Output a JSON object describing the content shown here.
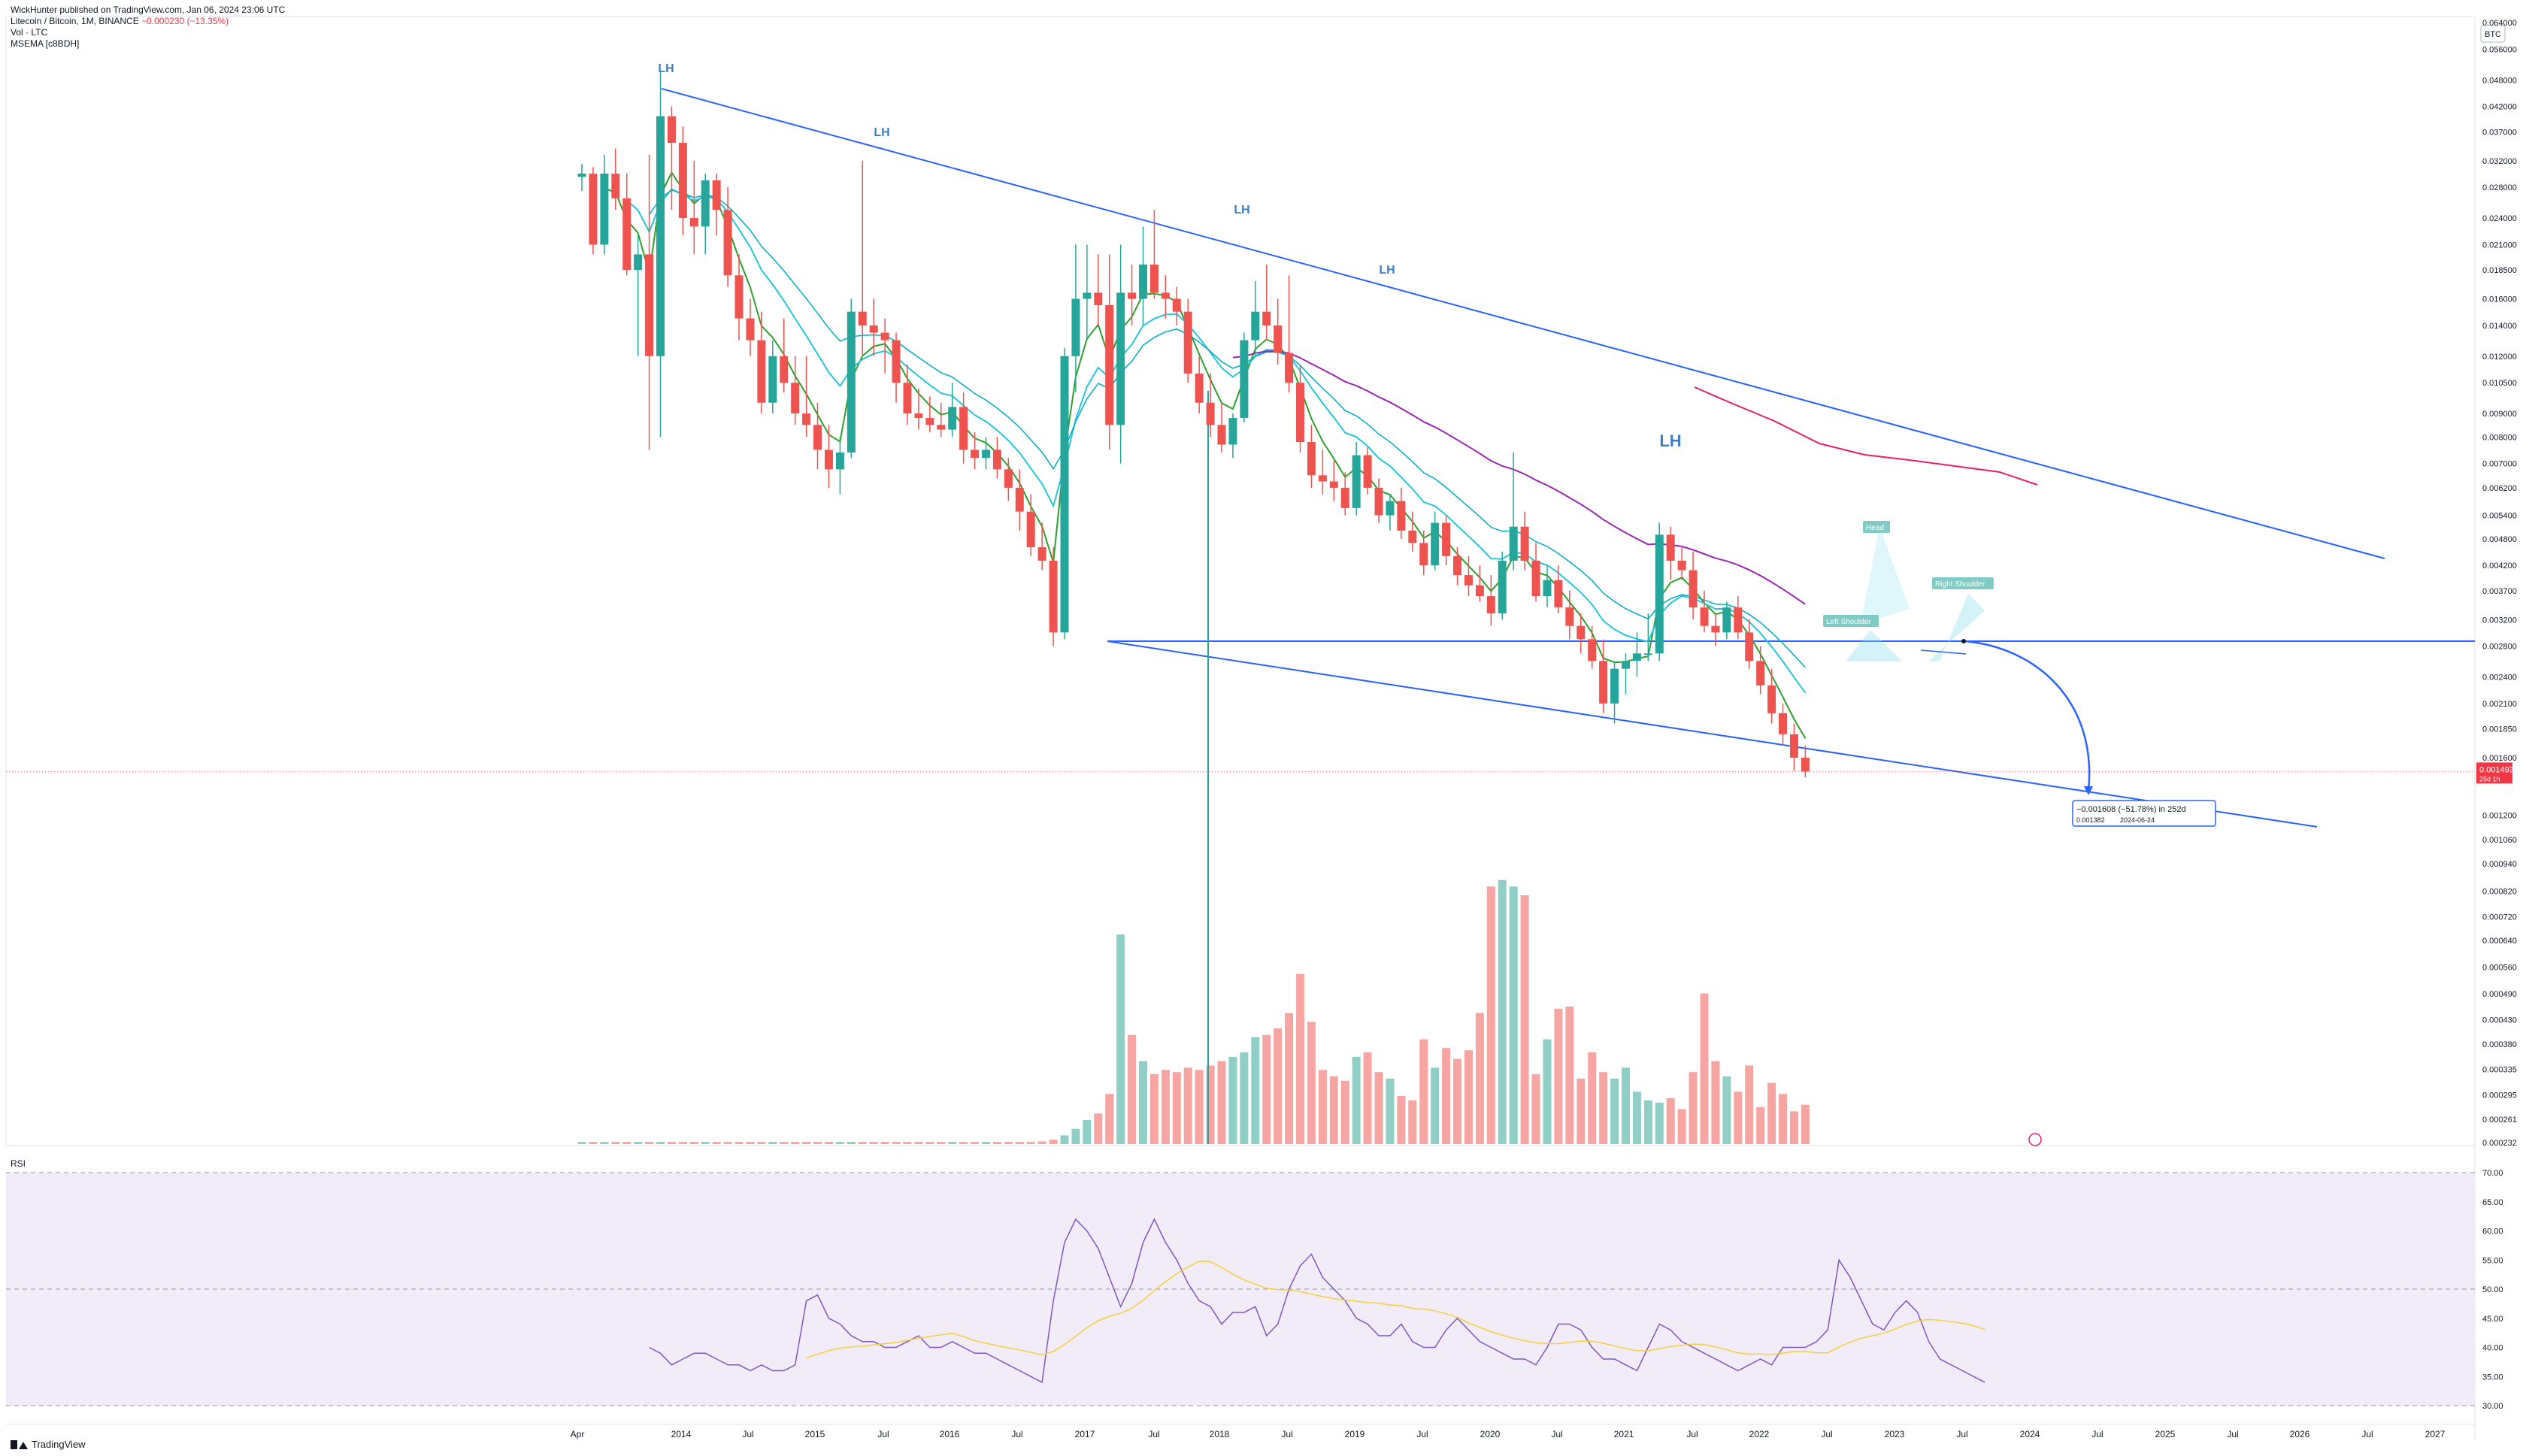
{
  "header": {
    "published": "WickHunter published on TradingView.com, Jan 06, 2024 23:06 UTC",
    "symbol": "Litecoin / Bitcoin, 1M, BINANCE",
    "change": "−0.000230 (−13.35%)",
    "vol_label": "Vol · LTC",
    "indicator": "MSEMA [c8BDH]"
  },
  "rsi_label": "RSI",
  "currency_badge": "BTC",
  "branding": "TradingView",
  "colors": {
    "up": "#26a69a",
    "down": "#ef5350",
    "vol_up": "#8fcfc6",
    "vol_down": "#f6a5a3",
    "trend": "#2962ff",
    "ema_green": "#2ca02c",
    "ema_cyan": "#26c6da",
    "ema_blue": "#00acc1",
    "ema_purple": "#9c27b0",
    "ema_pink": "#e91e63",
    "rsi": "#7e57c2",
    "rsi_ma": "#f4d03f",
    "rsi_band": "#ede7f6",
    "price": "#f23645"
  },
  "chart_data": {
    "type": "candlestick",
    "price_scale": "log",
    "y_ticks": [
      "0.064000",
      "0.056000",
      "0.048000",
      "0.042000",
      "0.037000",
      "0.032000",
      "0.028000",
      "0.024000",
      "0.021000",
      "0.018500",
      "0.016000",
      "0.014000",
      "0.012000",
      "0.010500",
      "0.009000",
      "0.008000",
      "0.007000",
      "0.006200",
      "0.005400",
      "0.004800",
      "0.004200",
      "0.003700",
      "0.003200",
      "0.002800",
      "0.002400",
      "0.002100",
      "0.001850",
      "0.001600",
      "0.001200",
      "0.001060",
      "0.000940",
      "0.000820",
      "0.000720",
      "0.000640",
      "0.000560",
      "0.000490",
      "0.000430",
      "0.000380",
      "0.000335",
      "0.000295",
      "0.000261",
      "0.000232"
    ],
    "current_price": {
      "value": "0.001493",
      "countdown": "25d 1h"
    },
    "x_ticks": [
      "Apr",
      "2014",
      "Jul",
      "2015",
      "Jul",
      "2016",
      "Jul",
      "2017",
      "Jul",
      "2018",
      "Jul",
      "2019",
      "Jul",
      "2020",
      "Jul",
      "2021",
      "Jul",
      "2022",
      "Jul",
      "2023",
      "Jul",
      "2024",
      "Jul",
      "2025",
      "Jul",
      "2026",
      "Jul",
      "2027"
    ],
    "candles_ohlc": [
      [
        0.0295,
        0.0315,
        0.0275,
        0.03
      ],
      [
        0.03,
        0.031,
        0.02,
        0.021
      ],
      [
        0.021,
        0.033,
        0.02,
        0.03
      ],
      [
        0.03,
        0.034,
        0.025,
        0.0265
      ],
      [
        0.0265,
        0.03,
        0.018,
        0.0185
      ],
      [
        0.0185,
        0.022,
        0.012,
        0.02
      ],
      [
        0.02,
        0.033,
        0.0075,
        0.012
      ],
      [
        0.012,
        0.05,
        0.008,
        0.04
      ],
      [
        0.04,
        0.042,
        0.025,
        0.035
      ],
      [
        0.035,
        0.038,
        0.022,
        0.024
      ],
      [
        0.024,
        0.032,
        0.02,
        0.023
      ],
      [
        0.023,
        0.03,
        0.02,
        0.029
      ],
      [
        0.029,
        0.03,
        0.022,
        0.025
      ],
      [
        0.025,
        0.028,
        0.017,
        0.018
      ],
      [
        0.018,
        0.02,
        0.013,
        0.0145
      ],
      [
        0.0145,
        0.016,
        0.012,
        0.013
      ],
      [
        0.013,
        0.015,
        0.009,
        0.0095
      ],
      [
        0.0095,
        0.013,
        0.009,
        0.012
      ],
      [
        0.012,
        0.0145,
        0.01,
        0.0105
      ],
      [
        0.0105,
        0.012,
        0.0085,
        0.009
      ],
      [
        0.009,
        0.012,
        0.008,
        0.0085
      ],
      [
        0.0085,
        0.0095,
        0.0068,
        0.0075
      ],
      [
        0.0075,
        0.0085,
        0.0062,
        0.0068
      ],
      [
        0.0068,
        0.008,
        0.006,
        0.0074
      ],
      [
        0.0074,
        0.016,
        0.0072,
        0.015
      ],
      [
        0.015,
        0.032,
        0.012,
        0.014
      ],
      [
        0.014,
        0.016,
        0.012,
        0.0135
      ],
      [
        0.0135,
        0.0145,
        0.011,
        0.013
      ],
      [
        0.013,
        0.0135,
        0.0095,
        0.0105
      ],
      [
        0.0105,
        0.0115,
        0.0085,
        0.009
      ],
      [
        0.009,
        0.0102,
        0.0083,
        0.0088
      ],
      [
        0.0088,
        0.0098,
        0.0082,
        0.0085
      ],
      [
        0.0085,
        0.0095,
        0.008,
        0.0083
      ],
      [
        0.0083,
        0.0105,
        0.008,
        0.0093
      ],
      [
        0.0093,
        0.01,
        0.007,
        0.0075
      ],
      [
        0.0075,
        0.0082,
        0.0068,
        0.0072
      ],
      [
        0.0072,
        0.008,
        0.0068,
        0.0075
      ],
      [
        0.0075,
        0.008,
        0.0065,
        0.0068
      ],
      [
        0.0068,
        0.0072,
        0.0058,
        0.0062
      ],
      [
        0.0062,
        0.0068,
        0.005,
        0.0055
      ],
      [
        0.0055,
        0.006,
        0.0044,
        0.0046
      ],
      [
        0.0046,
        0.0052,
        0.0041,
        0.0043
      ],
      [
        0.0043,
        0.0046,
        0.0028,
        0.003
      ],
      [
        0.003,
        0.0125,
        0.0029,
        0.012
      ],
      [
        0.012,
        0.021,
        0.01,
        0.016
      ],
      [
        0.016,
        0.021,
        0.013,
        0.0165
      ],
      [
        0.0165,
        0.02,
        0.014,
        0.0155
      ],
      [
        0.0155,
        0.02,
        0.0075,
        0.0085
      ],
      [
        0.0085,
        0.021,
        0.007,
        0.0165
      ],
      [
        0.0165,
        0.019,
        0.014,
        0.016
      ],
      [
        0.016,
        0.023,
        0.014,
        0.019
      ],
      [
        0.019,
        0.025,
        0.016,
        0.0165
      ],
      [
        0.0165,
        0.018,
        0.0145,
        0.016
      ],
      [
        0.016,
        0.017,
        0.014,
        0.015
      ],
      [
        0.015,
        0.016,
        0.0105,
        0.011
      ],
      [
        0.011,
        0.012,
        0.009,
        0.0095
      ],
      [
        0.0095,
        0.011,
        0.008,
        0.0085
      ],
      [
        0.0085,
        0.0095,
        0.0074,
        0.0077
      ],
      [
        0.0077,
        0.009,
        0.0072,
        0.0088
      ],
      [
        0.0088,
        0.0135,
        0.0086,
        0.013
      ],
      [
        0.013,
        0.0175,
        0.012,
        0.015
      ],
      [
        0.015,
        0.019,
        0.013,
        0.014
      ],
      [
        0.014,
        0.016,
        0.0115,
        0.0122
      ],
      [
        0.0122,
        0.018,
        0.01,
        0.0105
      ],
      [
        0.0105,
        0.0115,
        0.0074,
        0.0078
      ],
      [
        0.0078,
        0.0085,
        0.0062,
        0.0066
      ],
      [
        0.0066,
        0.0075,
        0.006,
        0.0064
      ],
      [
        0.0064,
        0.0071,
        0.0058,
        0.0062
      ],
      [
        0.0062,
        0.0067,
        0.0054,
        0.0056
      ],
      [
        0.0056,
        0.0078,
        0.0054,
        0.0073
      ],
      [
        0.0073,
        0.0076,
        0.006,
        0.0062
      ],
      [
        0.0062,
        0.0065,
        0.0052,
        0.0054
      ],
      [
        0.0054,
        0.006,
        0.005,
        0.0058
      ],
      [
        0.0058,
        0.0062,
        0.0048,
        0.005
      ],
      [
        0.005,
        0.0055,
        0.0045,
        0.0047
      ],
      [
        0.0047,
        0.005,
        0.004,
        0.0042
      ],
      [
        0.0042,
        0.0055,
        0.0041,
        0.0052
      ],
      [
        0.0052,
        0.0054,
        0.0042,
        0.0044
      ],
      [
        0.0044,
        0.0046,
        0.0038,
        0.004
      ],
      [
        0.004,
        0.0044,
        0.0036,
        0.0038
      ],
      [
        0.0038,
        0.0042,
        0.0035,
        0.0036
      ],
      [
        0.0036,
        0.004,
        0.0031,
        0.0033
      ],
      [
        0.0033,
        0.0045,
        0.0032,
        0.0043
      ],
      [
        0.0043,
        0.0074,
        0.0041,
        0.0051
      ],
      [
        0.0051,
        0.0055,
        0.0041,
        0.0043
      ],
      [
        0.0043,
        0.0047,
        0.0035,
        0.0036
      ],
      [
        0.0036,
        0.0042,
        0.0034,
        0.0039
      ],
      [
        0.0039,
        0.0042,
        0.0033,
        0.0034
      ],
      [
        0.0034,
        0.0037,
        0.0029,
        0.0031
      ],
      [
        0.0031,
        0.0033,
        0.0027,
        0.0029
      ],
      [
        0.0029,
        0.0031,
        0.0025,
        0.0026
      ],
      [
        0.0026,
        0.0029,
        0.002,
        0.0021
      ],
      [
        0.0021,
        0.0026,
        0.0019,
        0.0025
      ],
      [
        0.0025,
        0.0027,
        0.0022,
        0.0026
      ],
      [
        0.0026,
        0.003,
        0.0024,
        0.0027
      ],
      [
        0.0027,
        0.0033,
        0.0026,
        0.0027
      ],
      [
        0.0027,
        0.0052,
        0.0026,
        0.0049
      ],
      [
        0.0049,
        0.0051,
        0.0039,
        0.0043
      ],
      [
        0.0043,
        0.0046,
        0.0039,
        0.0041
      ],
      [
        0.0041,
        0.0045,
        0.0032,
        0.0034
      ],
      [
        0.0034,
        0.0037,
        0.003,
        0.0031
      ],
      [
        0.0031,
        0.0033,
        0.0028,
        0.003
      ],
      [
        0.003,
        0.0035,
        0.0029,
        0.0034
      ],
      [
        0.0034,
        0.0036,
        0.0029,
        0.003
      ],
      [
        0.003,
        0.0032,
        0.0025,
        0.0026
      ],
      [
        0.0026,
        0.0028,
        0.0022,
        0.0023
      ],
      [
        0.0023,
        0.0025,
        0.0019,
        0.002
      ],
      [
        0.002,
        0.0021,
        0.0017,
        0.0018
      ],
      [
        0.0018,
        0.0019,
        0.0015,
        0.0016
      ],
      [
        0.0016,
        0.0017,
        0.00145,
        0.001493
      ]
    ],
    "volume": [
      5,
      5,
      5,
      5,
      5,
      5,
      5,
      5,
      5,
      5,
      5,
      5,
      5,
      5,
      5,
      5,
      5,
      5,
      5,
      5,
      5,
      5,
      5,
      5,
      5,
      5,
      5,
      5,
      5,
      5,
      5,
      5,
      5,
      5,
      5,
      5,
      5,
      5,
      5,
      5,
      5,
      6,
      10,
      20,
      35,
      55,
      70,
      115,
      480,
      250,
      190,
      160,
      170,
      165,
      175,
      170,
      180,
      190,
      200,
      210,
      245,
      250,
      265,
      300,
      390,
      280,
      170,
      155,
      145,
      200,
      210,
      165,
      150,
      110,
      100,
      240,
      175,
      220,
      195,
      215,
      300,
      590,
      605,
      590,
      570,
      160,
      240,
      310,
      315,
      150,
      210,
      165,
      150,
      175,
      120,
      100,
      95,
      105,
      80,
      165,
      345,
      190,
      155,
      120,
      180,
      85,
      140,
      115,
      75,
      90,
      100,
      80,
      90,
      120,
      110,
      165,
      160,
      155,
      80,
      65,
      60,
      70
    ],
    "rsi": [
      40,
      39,
      37,
      38,
      39,
      39,
      38,
      37,
      37,
      36,
      37,
      36,
      36,
      37,
      48,
      49,
      45,
      44,
      42,
      41,
      41,
      40,
      40,
      41,
      42,
      40,
      40,
      41,
      40,
      39,
      39,
      38,
      37,
      36,
      35,
      34,
      48,
      58,
      62,
      60,
      57,
      52,
      47,
      51,
      58,
      62,
      58,
      55,
      51,
      48,
      47,
      44,
      46,
      46,
      47,
      42,
      44,
      50,
      54,
      56,
      52,
      50,
      48,
      45,
      44,
      42,
      42,
      44,
      41,
      40,
      40,
      43,
      45,
      43,
      41,
      40,
      39,
      38,
      38,
      37,
      40,
      44,
      44,
      43,
      40,
      38,
      38,
      37,
      36,
      40,
      44,
      43,
      41,
      40,
      39,
      38,
      37,
      36,
      37,
      38,
      37,
      40,
      40,
      40,
      41,
      43,
      55,
      52,
      48,
      44,
      43,
      46,
      48,
      46,
      41,
      38,
      37,
      36,
      35,
      34
    ],
    "rsi_ticks": [
      "70.00",
      "65.00",
      "60.00",
      "55.00",
      "50.00",
      "45.00",
      "40.00",
      "35.00",
      "30.00"
    ],
    "annotations": {
      "lh_labels": [
        "LH",
        "LH",
        "LH",
        "LH",
        "LH"
      ],
      "head_label": "Head",
      "left_shoulder_label": "Left Shoulder",
      "right_shoulder_label": "Right Shoulder",
      "projection": {
        "change": "−0.001608 (−51.78%) in 252d",
        "price": "0.001382",
        "date": "2024-06-24"
      }
    }
  }
}
